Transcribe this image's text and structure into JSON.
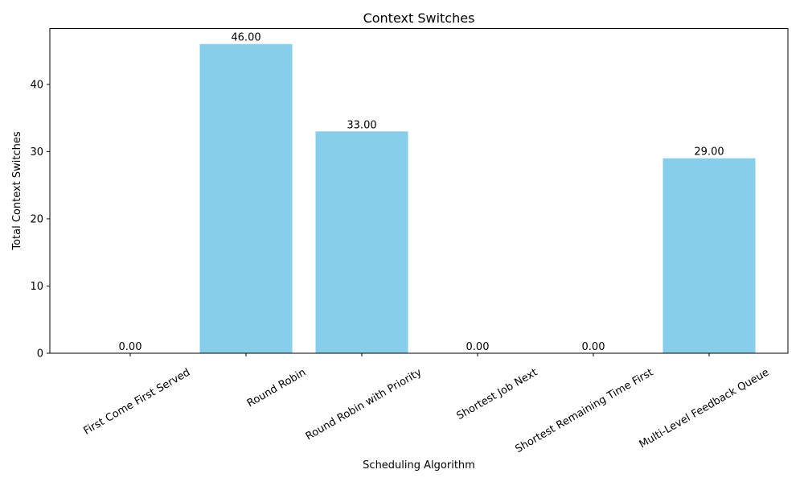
{
  "chart_data": {
    "type": "bar",
    "title": "Context Switches",
    "xlabel": "Scheduling Algorithm",
    "ylabel": "Total Context Switches",
    "categories": [
      "First Come First Served",
      "Round Robin",
      "Round Robin with Priority",
      "Shortest Job Next",
      "Shortest Remaining Time First",
      "Multi-Level Feedback Queue"
    ],
    "values": [
      0,
      46,
      33,
      0,
      0,
      29
    ],
    "value_labels": [
      "0.00",
      "46.00",
      "33.00",
      "0.00",
      "0.00",
      "29.00"
    ],
    "ylim": [
      0,
      48.3
    ],
    "yticks": [
      0,
      10,
      20,
      30,
      40
    ],
    "ytick_labels": [
      "0",
      "10",
      "20",
      "30",
      "40"
    ],
    "bar_color": "#87ceeb",
    "grid": false,
    "legend": "none",
    "xtick_rotation_deg": 30
  }
}
